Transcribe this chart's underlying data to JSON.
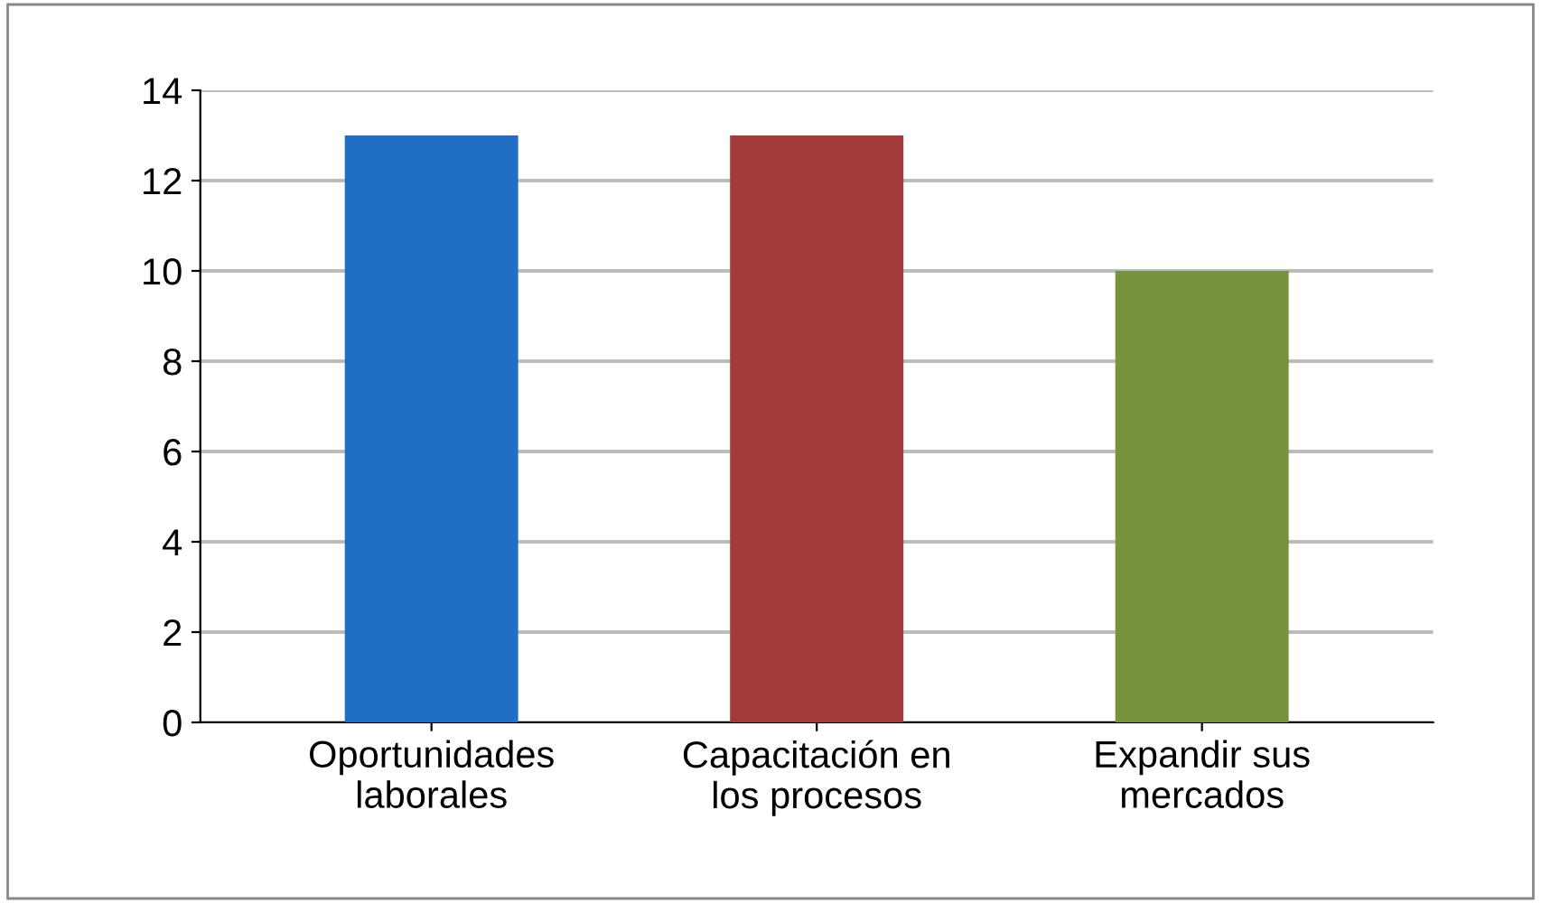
{
  "chart_data": {
    "type": "bar",
    "categories": [
      "Oportunidades\nlaborales",
      "Capacitación en\nlos procesos",
      "Expandir sus\nmercados"
    ],
    "values": [
      13,
      13,
      10
    ],
    "colors": [
      "#1f6fc5",
      "#a33a3a",
      "#77933c"
    ],
    "ylim": [
      0,
      14
    ],
    "yticks": [
      0,
      2,
      4,
      6,
      8,
      10,
      12,
      14
    ],
    "grid": "y",
    "legend": false
  }
}
